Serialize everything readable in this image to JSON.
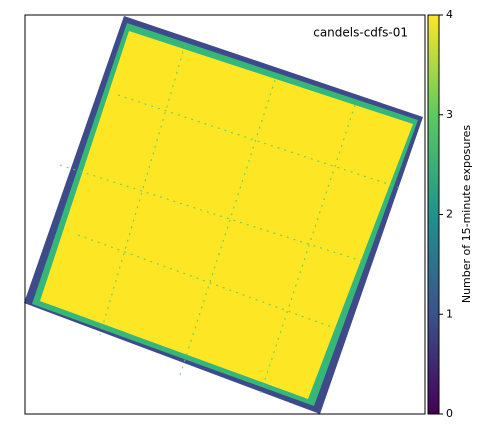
{
  "chart_data": {
    "type": "heatmap",
    "title": "candels-cdfs-01",
    "colorbar": {
      "label": "Number of 15-minute exposures",
      "lim": [
        0,
        4
      ],
      "ticks": [
        0,
        1,
        2,
        3,
        4
      ]
    }
  }
}
